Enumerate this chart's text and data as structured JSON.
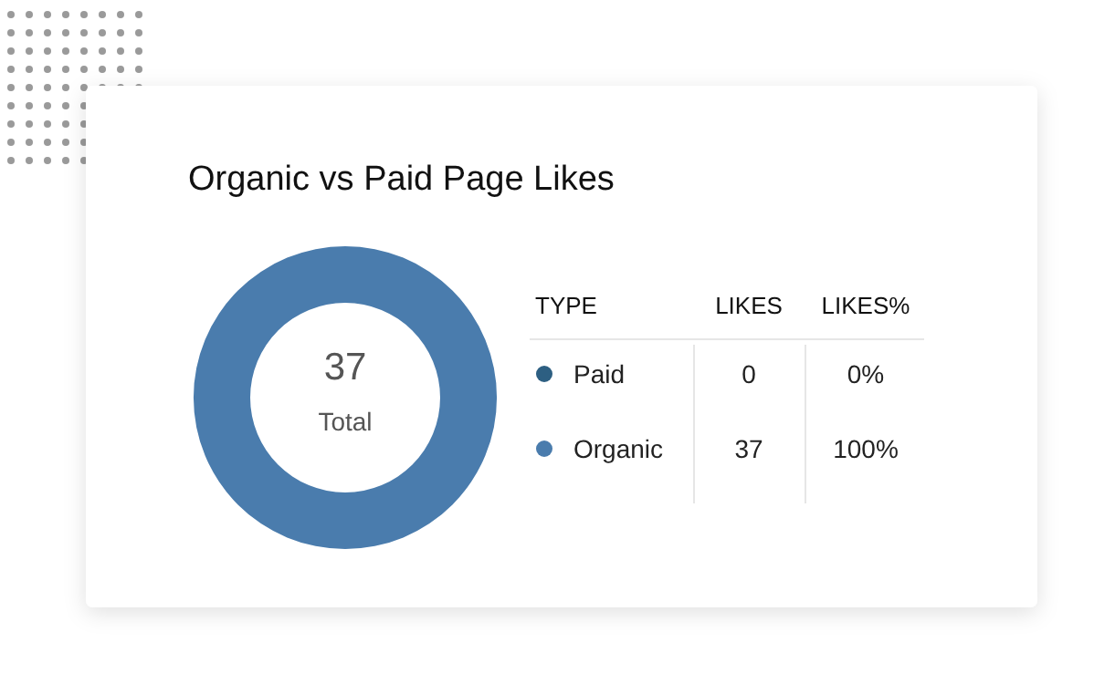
{
  "chart_data": {
    "type": "donut",
    "title": "Organic vs Paid Page Likes",
    "categories": [
      "Paid",
      "Organic"
    ],
    "values": [
      0,
      37
    ],
    "colors": [
      "#2d5f82",
      "#4a7cad"
    ],
    "legend": "right",
    "legend_title": "TYPE",
    "value_labels": [
      "0",
      "37"
    ],
    "annotations": [
      "37",
      "Total",
      "LIKES",
      "LIKES%",
      "0%",
      "100%"
    ]
  }
}
